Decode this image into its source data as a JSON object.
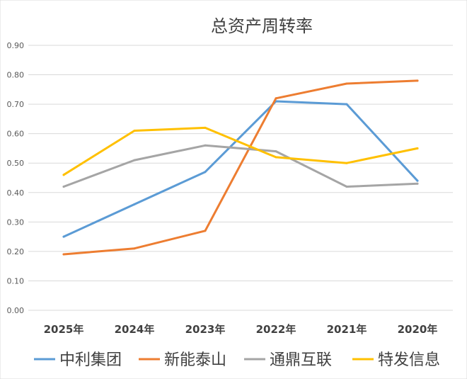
{
  "chart_data": {
    "type": "line",
    "title": "总资产周转率",
    "xlabel": "",
    "ylabel": "",
    "categories": [
      "2025年",
      "2024年",
      "2023年",
      "2022年",
      "2021年",
      "2020年"
    ],
    "ylim": [
      0,
      0.9
    ],
    "yticks": [
      "0.00",
      "0.10",
      "0.20",
      "0.30",
      "0.40",
      "0.50",
      "0.60",
      "0.70",
      "0.80",
      "0.90"
    ],
    "grid": true,
    "legend_position": "bottom",
    "series": [
      {
        "name": "中利集团",
        "color": "#5B9BD5",
        "values": [
          0.25,
          0.36,
          0.47,
          0.71,
          0.7,
          0.44
        ]
      },
      {
        "name": "新能泰山",
        "color": "#ED7D31",
        "values": [
          0.19,
          0.21,
          0.27,
          0.72,
          0.77,
          0.78
        ]
      },
      {
        "name": "通鼎互联",
        "color": "#A5A5A5",
        "values": [
          0.42,
          0.51,
          0.56,
          0.54,
          0.42,
          0.43
        ]
      },
      {
        "name": "特发信息",
        "color": "#FFC000",
        "values": [
          0.46,
          0.61,
          0.62,
          0.52,
          0.5,
          0.55
        ]
      }
    ]
  }
}
